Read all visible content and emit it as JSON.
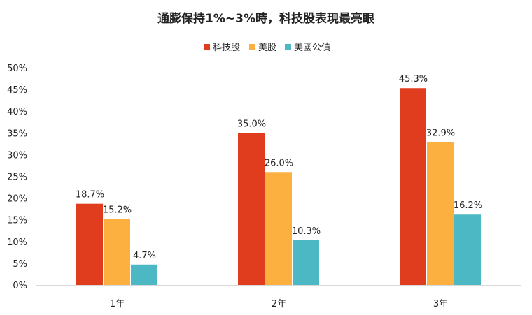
{
  "chart_data": {
    "type": "bar",
    "title": "通膨保持1%~3%時，科技股表現最亮眼",
    "categories": [
      "1年",
      "2年",
      "3年"
    ],
    "series": [
      {
        "name": "科技股",
        "color": "#e03c1e",
        "values": [
          18.7,
          35.0,
          45.3
        ],
        "labels": [
          "18.7%",
          "35.0%",
          "45.3%"
        ]
      },
      {
        "name": "美股",
        "color": "#fbb040",
        "values": [
          15.2,
          26.0,
          32.9
        ],
        "labels": [
          "15.2%",
          "26.0%",
          "32.9%"
        ]
      },
      {
        "name": "美國公債",
        "color": "#4cb8c4",
        "values": [
          4.7,
          10.3,
          16.2
        ],
        "labels": [
          "4.7%",
          "10.3%",
          "16.2%"
        ]
      }
    ],
    "ylim": [
      0,
      50
    ],
    "y_ticks": [
      "0%",
      "5%",
      "10%",
      "15%",
      "20%",
      "25%",
      "30%",
      "35%",
      "40%",
      "45%",
      "50%"
    ],
    "xlabel": "",
    "ylabel": "",
    "legend_position": "top-center",
    "grid": false
  }
}
